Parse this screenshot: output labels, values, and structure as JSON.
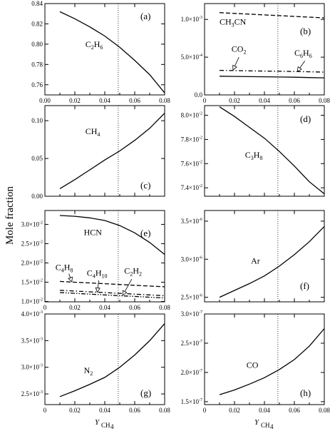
{
  "figure": {
    "ylabel": "Mole fraction",
    "xlabel": "Y",
    "xlabel_sub": "CH",
    "xlabel_subsub": "4"
  },
  "chart_data": [
    {
      "id": "a",
      "type": "line",
      "panel_label": "(a)",
      "xlim": [
        0,
        0.08
      ],
      "ylim": [
        0.75,
        0.84
      ],
      "xticks": [
        0,
        0.02,
        0.04,
        0.06,
        0.08
      ],
      "xticklabels": [
        "0.00",
        "0.02",
        "0.04",
        "0.06",
        "0.08"
      ],
      "yticks": [
        0.76,
        0.78,
        0.8,
        0.82,
        0.84
      ],
      "yticklabels": [
        "0.76",
        "0.78",
        "0.80",
        "0.82",
        "0.84"
      ],
      "vline_x": 0.049,
      "series": [
        {
          "label": "C2H6",
          "style": "solid",
          "x": [
            0.01,
            0.02,
            0.03,
            0.04,
            0.05,
            0.06,
            0.07,
            0.08
          ],
          "y": [
            0.832,
            0.825,
            0.817,
            0.808,
            0.797,
            0.784,
            0.77,
            0.752
          ]
        }
      ],
      "annotations": [
        {
          "text": "C",
          "sub": "2",
          "text2": "H",
          "sub2": "6",
          "x": 0.027,
          "y": 0.797
        }
      ]
    },
    {
      "id": "b",
      "type": "line",
      "panel_label": "(b)",
      "xlim": [
        0,
        0.08
      ],
      "ylim": [
        0,
        0.00121
      ],
      "xticks": [
        0,
        0.02,
        0.04,
        0.06,
        0.08
      ],
      "yticks": [
        0,
        0.0005,
        0.001
      ],
      "yticklabels": [
        {
          "base": "0.0",
          "exp": ""
        },
        {
          "base": "5.0×10",
          "exp": "-4"
        },
        {
          "base": "1.0×10",
          "exp": "-3"
        }
      ],
      "vline_x": 0.049,
      "series": [
        {
          "label": "CH3CN",
          "style": "dashed",
          "x": [
            0.01,
            0.02,
            0.03,
            0.04,
            0.05,
            0.06,
            0.07,
            0.08
          ],
          "y": [
            0.00109,
            0.00108,
            0.00107,
            0.00106,
            0.00105,
            0.00104,
            0.00103,
            0.00102
          ]
        },
        {
          "label": "CO2",
          "style": "solid",
          "x": [
            0.01,
            0.02,
            0.03,
            0.04,
            0.05,
            0.06,
            0.07,
            0.08
          ],
          "y": [
            0.000248,
            0.000245,
            0.000242,
            0.00024,
            0.000237,
            0.000234,
            0.00023,
            0.000226
          ]
        },
        {
          "label": "C6H6",
          "style": "dashdot",
          "x": [
            0.01,
            0.02,
            0.03,
            0.04,
            0.05,
            0.06,
            0.07,
            0.08
          ],
          "y": [
            0.000325,
            0.000322,
            0.000319,
            0.000316,
            0.000313,
            0.00031,
            0.000306,
            0.000302
          ]
        }
      ],
      "annotations": [
        {
          "text": "CH",
          "sub": "3",
          "text2": "CN",
          "sub2": "",
          "x": 0.01,
          "y": 0.00093
        },
        {
          "text": "CO",
          "sub": "2",
          "text2": "",
          "sub2": "",
          "x": 0.018,
          "y": 0.00057
        },
        {
          "text": "C",
          "sub": "6",
          "text2": "H",
          "sub2": "6",
          "x": 0.06,
          "y": 0.00052
        }
      ],
      "arrows": [
        {
          "x1": 0.023,
          "y1": 0.0005,
          "x2": 0.019,
          "y2": 0.00033
        },
        {
          "x1": 0.067,
          "y1": 0.00045,
          "x2": 0.062,
          "y2": 0.00031
        }
      ]
    },
    {
      "id": "c",
      "type": "line",
      "panel_label": "(c)",
      "xlim": [
        0,
        0.08
      ],
      "ylim": [
        0,
        0.12
      ],
      "xticks": [
        0,
        0.02,
        0.04,
        0.06,
        0.08
      ],
      "yticks": [
        0,
        0.05,
        0.1
      ],
      "yticklabels": [
        "0.00",
        "0.05",
        "0.10"
      ],
      "vline_x": 0.049,
      "series": [
        {
          "label": "CH4",
          "style": "solid",
          "x": [
            0.01,
            0.02,
            0.03,
            0.04,
            0.05,
            0.06,
            0.07,
            0.08
          ],
          "y": [
            0.01,
            0.022,
            0.035,
            0.048,
            0.06,
            0.074,
            0.09,
            0.11
          ]
        }
      ],
      "annotations": [
        {
          "text": "CH",
          "sub": "4",
          "text2": "",
          "sub2": "",
          "x": 0.027,
          "y": 0.082
        }
      ]
    },
    {
      "id": "d",
      "type": "line",
      "panel_label": "(d)",
      "xlim": [
        0,
        0.08
      ],
      "ylim": [
        0.0733,
        0.0808
      ],
      "xticks": [
        0,
        0.02,
        0.04,
        0.06,
        0.08
      ],
      "yticks": [
        0.074,
        0.076,
        0.078,
        0.08
      ],
      "yticklabels": [
        {
          "base": "7.4×10",
          "exp": "-2"
        },
        {
          "base": "7.6×10",
          "exp": "-2"
        },
        {
          "base": "7.8×10",
          "exp": "-2"
        },
        {
          "base": "8.0×10",
          "exp": "-2"
        }
      ],
      "vline_x": 0.049,
      "series": [
        {
          "label": "C3H8",
          "style": "solid",
          "x": [
            0.01,
            0.02,
            0.03,
            0.04,
            0.05,
            0.06,
            0.07,
            0.08
          ],
          "y": [
            0.0807,
            0.0799,
            0.079,
            0.0781,
            0.077,
            0.0758,
            0.0745,
            0.0735
          ]
        }
      ],
      "annotations": [
        {
          "text": "C",
          "sub": "3",
          "text2": "H",
          "sub2": "8",
          "x": 0.027,
          "y": 0.0765
        }
      ]
    },
    {
      "id": "e",
      "type": "line",
      "panel_label": "(e)",
      "xlim": [
        0,
        0.08
      ],
      "ylim": [
        0.0099,
        0.0336
      ],
      "xticks": [
        0,
        0.02,
        0.04,
        0.06,
        0.08
      ],
      "xticklabels": [
        "0",
        "0.02",
        "0.04",
        "0.06",
        "0.08"
      ],
      "yticks": [
        0.01,
        0.015,
        0.02,
        0.025,
        0.03
      ],
      "yticklabels": [
        {
          "base": "1.0×10",
          "exp": "-2"
        },
        {
          "base": "1.5×10",
          "exp": "-2"
        },
        {
          "base": "2.0×10",
          "exp": "-2"
        },
        {
          "base": "2.5×10",
          "exp": "-2"
        },
        {
          "base": "3.0×10",
          "exp": "-2"
        }
      ],
      "vline_x": 0.049,
      "series": [
        {
          "label": "HCN",
          "style": "solid",
          "x": [
            0.01,
            0.02,
            0.03,
            0.04,
            0.05,
            0.06,
            0.07,
            0.08
          ],
          "y": [
            0.0323,
            0.0321,
            0.0317,
            0.031,
            0.0297,
            0.0278,
            0.0253,
            0.0222
          ]
        },
        {
          "label": "C4H8",
          "style": "dashed",
          "x": [
            0.01,
            0.02,
            0.03,
            0.04,
            0.05,
            0.06,
            0.07,
            0.08
          ],
          "y": [
            0.0152,
            0.015,
            0.0148,
            0.0146,
            0.0144,
            0.0142,
            0.014,
            0.0138
          ]
        },
        {
          "label": "C4H10",
          "style": "dashdot",
          "x": [
            0.01,
            0.02,
            0.03,
            0.04,
            0.05,
            0.06,
            0.07,
            0.08
          ],
          "y": [
            0.0129,
            0.0127,
            0.0125,
            0.0123,
            0.0121,
            0.0119,
            0.0117,
            0.0115
          ]
        },
        {
          "label": "C2H2",
          "style": "dashdotdot",
          "x": [
            0.01,
            0.02,
            0.03,
            0.04,
            0.05,
            0.06,
            0.07,
            0.08
          ],
          "y": [
            0.0123,
            0.0121,
            0.0119,
            0.0117,
            0.0115,
            0.0113,
            0.0111,
            0.0109
          ]
        }
      ],
      "annotations": [
        {
          "text": "HCN",
          "sub": "",
          "text2": "",
          "sub2": "",
          "x": 0.026,
          "y": 0.0272
        },
        {
          "text": "C",
          "sub": "4",
          "text2": "H",
          "sub2": "8",
          "x": 0.007,
          "y": 0.0181
        },
        {
          "text": "C",
          "sub": "4",
          "text2": "H",
          "sub2": "10",
          "x": 0.028,
          "y": 0.0167
        },
        {
          "text": "C",
          "sub": "2",
          "text2": "H",
          "sub2": "2",
          "x": 0.053,
          "y": 0.0172
        }
      ],
      "arrows": [
        {
          "x1": 0.016,
          "y1": 0.0172,
          "x2": 0.018,
          "y2": 0.0151
        },
        {
          "x1": 0.036,
          "y1": 0.0155,
          "x2": 0.035,
          "y2": 0.0124
        },
        {
          "x1": 0.058,
          "y1": 0.0158,
          "x2": 0.052,
          "y2": 0.0116
        }
      ]
    },
    {
      "id": "f",
      "type": "line",
      "panel_label": "(f)",
      "xlim": [
        0,
        0.08
      ],
      "ylim": [
        2.44e-06,
        3.64e-06
      ],
      "xticks": [
        0,
        0.02,
        0.04,
        0.06,
        0.08
      ],
      "yticks": [
        2.5e-06,
        3e-06,
        3.5e-06
      ],
      "yticklabels": [
        {
          "base": "2.5×10",
          "exp": "-6"
        },
        {
          "base": "3.0×10",
          "exp": "-6"
        },
        {
          "base": "3.5×10",
          "exp": "-6"
        }
      ],
      "vline_x": 0.049,
      "series": [
        {
          "label": "Ar",
          "style": "solid",
          "x": [
            0.01,
            0.02,
            0.03,
            0.04,
            0.05,
            0.06,
            0.07,
            0.08
          ],
          "y": [
            2.5e-06,
            2.59e-06,
            2.68e-06,
            2.78e-06,
            2.91e-06,
            3.06e-06,
            3.23e-06,
            3.43e-06
          ]
        }
      ],
      "annotations": [
        {
          "text": "Ar",
          "sub": "",
          "text2": "",
          "sub2": "",
          "x": 0.031,
          "y": 2.94e-06
        }
      ]
    },
    {
      "id": "g",
      "type": "line",
      "panel_label": "(g)",
      "xlim": [
        0,
        0.08
      ],
      "ylim": [
        0.0023,
        0.004
      ],
      "xticks": [
        0,
        0.02,
        0.04,
        0.06,
        0.08
      ],
      "xticklabels": [
        "0",
        "0.02",
        "0.04",
        "0.06",
        "0.08"
      ],
      "yticks": [
        0.0025,
        0.003,
        0.0035,
        0.004
      ],
      "yticklabels": [
        {
          "base": "2.5×10",
          "exp": "-3"
        },
        {
          "base": "3.0×10",
          "exp": "-3"
        },
        {
          "base": "3.5×10",
          "exp": "-3"
        },
        {
          "base": "4.0×10",
          "exp": "-3"
        }
      ],
      "vline_x": 0.049,
      "series": [
        {
          "label": "N2",
          "style": "solid",
          "x": [
            0.01,
            0.02,
            0.03,
            0.04,
            0.05,
            0.06,
            0.07,
            0.08
          ],
          "y": [
            0.00245,
            0.00256,
            0.00268,
            0.00281,
            0.003,
            0.00323,
            0.0035,
            0.00382
          ]
        }
      ],
      "annotations": [
        {
          "text": "N",
          "sub": "2",
          "text2": "",
          "sub2": "",
          "x": 0.026,
          "y": 0.00289
        }
      ]
    },
    {
      "id": "h",
      "type": "line",
      "panel_label": "(h)",
      "xlim": [
        0,
        0.08
      ],
      "ylim": [
        1.45e-07,
        3e-07
      ],
      "xticks": [
        0,
        0.02,
        0.04,
        0.06,
        0.08
      ],
      "yticks": [
        1.5e-07,
        2e-07,
        2.5e-07,
        3e-07
      ],
      "yticklabels": [
        {
          "base": "1.5×10",
          "exp": "-7"
        },
        {
          "base": "2.0×10",
          "exp": "-7"
        },
        {
          "base": "2.5×10",
          "exp": "-7"
        },
        {
          "base": "3.0×10",
          "exp": "-7"
        }
      ],
      "vline_x": 0.049,
      "series": [
        {
          "label": "CO",
          "style": "solid",
          "x": [
            0.01,
            0.02,
            0.03,
            0.04,
            0.05,
            0.06,
            0.07,
            0.08
          ],
          "y": [
            1.62e-07,
            1.7e-07,
            1.8e-07,
            1.91e-07,
            2.05e-07,
            2.22e-07,
            2.45e-07,
            2.75e-07
          ]
        }
      ],
      "annotations": [
        {
          "text": "CO",
          "sub": "",
          "text2": "",
          "sub2": "",
          "x": 0.028,
          "y": 2.08e-07
        }
      ]
    }
  ]
}
